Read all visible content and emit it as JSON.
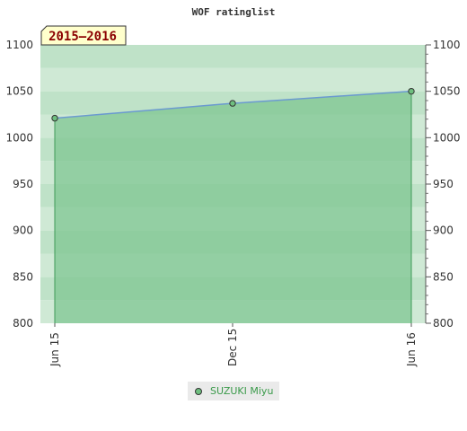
{
  "colors": {
    "fill": "#7fc692",
    "line": "#6b9ad0",
    "drop_line": "#3f9a58",
    "marker": "#6ebf7f",
    "label_bg": "#ffffcc",
    "label_text": "#8b0000",
    "legend_text": "#3a9a4a"
  },
  "chart_data": {
    "type": "area",
    "title": "WOF ratinglist",
    "season_label": "2015–2016",
    "x_ticks": [
      "Jun 15",
      "Dec 15",
      "Jun 16"
    ],
    "x": [
      "2015-06",
      "2015-12",
      "2016-06"
    ],
    "series": [
      {
        "name": "SUZUKI Miyu",
        "values": [
          1021,
          1037,
          1050
        ]
      }
    ],
    "ylim": [
      800,
      1100
    ],
    "y_ticks": [
      800,
      850,
      900,
      950,
      1000,
      1050,
      1100
    ],
    "grid": true,
    "legend_position": "bottom-center"
  }
}
